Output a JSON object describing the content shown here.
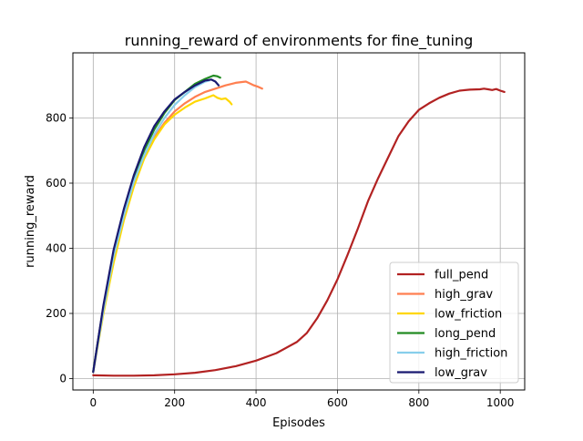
{
  "chart_data": {
    "type": "line",
    "title": "running_reward of environments for fine_tuning",
    "xlabel": "Episodes",
    "ylabel": "running_reward",
    "xlim": [
      -50,
      1060
    ],
    "ylim": [
      -35,
      1000
    ],
    "xticks": [
      0,
      200,
      400,
      600,
      800,
      1000
    ],
    "yticks": [
      0,
      200,
      400,
      600,
      800
    ],
    "xtick_labels": [
      "0",
      "200",
      "400",
      "600",
      "800",
      "1000"
    ],
    "ytick_labels": [
      "0",
      "200",
      "400",
      "600",
      "800"
    ],
    "grid": true,
    "legend_position": "lower-right",
    "series": [
      {
        "name": "full_pend",
        "color": "#b22222",
        "x": [
          0,
          50,
          100,
          150,
          200,
          250,
          300,
          350,
          400,
          450,
          500,
          525,
          550,
          575,
          600,
          625,
          650,
          675,
          700,
          725,
          750,
          775,
          800,
          825,
          850,
          875,
          900,
          925,
          950,
          960,
          970,
          980,
          990,
          1000,
          1010
        ],
        "y": [
          10,
          9,
          9,
          10,
          13,
          18,
          26,
          38,
          55,
          78,
          112,
          140,
          185,
          240,
          305,
          380,
          460,
          545,
          615,
          680,
          745,
          790,
          825,
          845,
          862,
          875,
          884,
          887,
          888,
          890,
          888,
          886,
          889,
          884,
          880
        ]
      },
      {
        "name": "high_grav",
        "color": "#ff7f50",
        "x": [
          0,
          25,
          50,
          75,
          100,
          125,
          150,
          175,
          200,
          225,
          250,
          275,
          300,
          325,
          350,
          375,
          385,
          395,
          405,
          415
        ],
        "y": [
          20,
          220,
          380,
          500,
          600,
          680,
          740,
          785,
          820,
          845,
          865,
          880,
          890,
          900,
          908,
          912,
          906,
          900,
          896,
          890
        ]
      },
      {
        "name": "low_friction",
        "color": "#ffd700",
        "x": [
          0,
          25,
          50,
          75,
          100,
          125,
          150,
          175,
          200,
          225,
          250,
          275,
          295,
          305,
          315,
          325,
          335,
          340
        ],
        "y": [
          20,
          200,
          355,
          485,
          590,
          675,
          735,
          780,
          810,
          832,
          850,
          860,
          870,
          862,
          858,
          860,
          850,
          842
        ]
      },
      {
        "name": "long_pend",
        "color": "#228b22",
        "x": [
          0,
          25,
          50,
          75,
          100,
          125,
          150,
          175,
          200,
          225,
          250,
          275,
          295,
          305,
          312
        ],
        "y": [
          22,
          220,
          385,
          510,
          615,
          700,
          765,
          815,
          855,
          880,
          905,
          920,
          930,
          928,
          924
        ]
      },
      {
        "name": "high_friction",
        "color": "#87ceeb",
        "x": [
          0,
          25,
          50,
          75,
          100,
          125,
          150,
          175,
          200,
          225,
          250,
          275,
          285
        ],
        "y": [
          20,
          210,
          375,
          500,
          605,
          685,
          750,
          800,
          840,
          870,
          895,
          912,
          915
        ]
      },
      {
        "name": "low_grav",
        "color": "#191970",
        "x": [
          0,
          25,
          50,
          75,
          100,
          125,
          150,
          175,
          200,
          225,
          250,
          275,
          290,
          300,
          308
        ],
        "y": [
          20,
          225,
          395,
          520,
          625,
          710,
          775,
          820,
          857,
          880,
          900,
          915,
          918,
          912,
          900
        ]
      }
    ]
  }
}
